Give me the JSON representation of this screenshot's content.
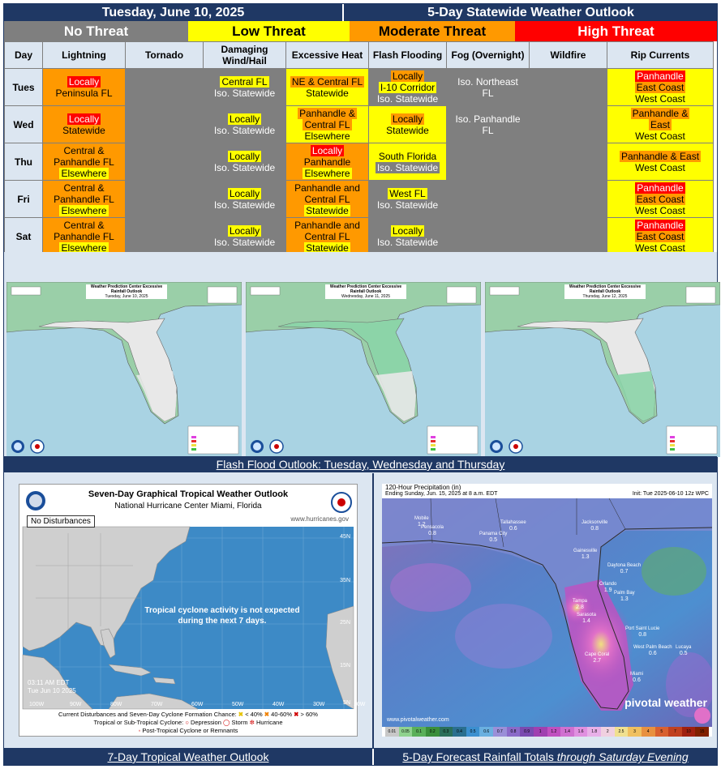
{
  "header": {
    "date": "Tuesday, June 10, 2025",
    "title": "5-Day Statewide Weather Outlook"
  },
  "legend": [
    {
      "label": "No Threat",
      "color": "#7f7f7f",
      "text_color": "#ffffff"
    },
    {
      "label": "Low Threat",
      "color": "#ffff00",
      "text_color": "#000000"
    },
    {
      "label": "Moderate Threat",
      "color": "#ff9900",
      "text_color": "#000000"
    },
    {
      "label": "High Threat",
      "color": "#ff0000",
      "text_color": "#ffffff"
    }
  ],
  "columns": [
    "Day",
    "Lightning",
    "Tornado",
    "Damaging Wind/Hail",
    "Excessive Heat",
    "Flash Flooding",
    "Fog (Overnight)",
    "Wildfire",
    "Rip Currents"
  ],
  "rows": [
    {
      "day": "Tues",
      "cells": [
        {
          "bg": "orange",
          "chips": [
            {
              "t": "Locally",
              "c": "red"
            },
            {
              "t": "Peninsula FL",
              "c": "none"
            }
          ]
        },
        {
          "bg": "gray",
          "chips": []
        },
        {
          "bg": "gray",
          "chips": [
            {
              "t": "Central FL",
              "c": "yellow"
            },
            {
              "t": "Iso. Statewide",
              "c": "none"
            }
          ]
        },
        {
          "bg": "yellow",
          "chips": [
            {
              "t": "NE & Central FL",
              "c": "orange"
            },
            {
              "t": "Statewide",
              "c": "none"
            }
          ]
        },
        {
          "bg": "gray",
          "chips": [
            {
              "t": "Locally",
              "c": "orange"
            },
            {
              "t": "I-10 Corridor",
              "c": "yellow"
            },
            {
              "t": "Iso. Statewide",
              "c": "none"
            }
          ]
        },
        {
          "bg": "gray",
          "chips": [
            {
              "t": "Iso. Northeast",
              "c": "none"
            },
            {
              "t": "FL",
              "c": "none"
            }
          ]
        },
        {
          "bg": "gray",
          "chips": []
        },
        {
          "bg": "yellow",
          "chips": [
            {
              "t": "Panhandle",
              "c": "red"
            },
            {
              "t": "East Coast",
              "c": "orange"
            },
            {
              "t": "West Coast",
              "c": "none"
            }
          ]
        }
      ]
    },
    {
      "day": "Wed",
      "cells": [
        {
          "bg": "orange",
          "chips": [
            {
              "t": "Locally",
              "c": "red"
            },
            {
              "t": "Statewide",
              "c": "none"
            }
          ]
        },
        {
          "bg": "gray",
          "chips": []
        },
        {
          "bg": "gray",
          "chips": [
            {
              "t": "Locally",
              "c": "yellow"
            },
            {
              "t": "Iso. Statewide",
              "c": "none"
            }
          ]
        },
        {
          "bg": "yellow",
          "chips": [
            {
              "t": "Panhandle &",
              "c": "orange"
            },
            {
              "t": "Central FL",
              "c": "orange"
            },
            {
              "t": "Elsewhere",
              "c": "none"
            }
          ]
        },
        {
          "bg": "yellow",
          "chips": [
            {
              "t": "Locally",
              "c": "orange"
            },
            {
              "t": "Statewide",
              "c": "none"
            }
          ]
        },
        {
          "bg": "gray",
          "chips": [
            {
              "t": "Iso. Panhandle",
              "c": "none"
            },
            {
              "t": "FL",
              "c": "none"
            }
          ]
        },
        {
          "bg": "gray",
          "chips": []
        },
        {
          "bg": "yellow",
          "chips": [
            {
              "t": "Panhandle &",
              "c": "orange"
            },
            {
              "t": "East",
              "c": "orange"
            },
            {
              "t": "West Coast",
              "c": "none"
            }
          ]
        }
      ]
    },
    {
      "day": "Thu",
      "cells": [
        {
          "bg": "orange",
          "chips": [
            {
              "t": "Central &",
              "c": "none"
            },
            {
              "t": "Panhandle FL",
              "c": "none"
            },
            {
              "t": "Elsewhere",
              "c": "yellow"
            }
          ]
        },
        {
          "bg": "gray",
          "chips": []
        },
        {
          "bg": "gray",
          "chips": [
            {
              "t": "Locally",
              "c": "yellow"
            },
            {
              "t": "Iso. Statewide",
              "c": "none"
            }
          ]
        },
        {
          "bg": "orange",
          "chips": [
            {
              "t": "Locally",
              "c": "red"
            },
            {
              "t": "Panhandle",
              "c": "none"
            },
            {
              "t": "Elsewhere",
              "c": "yellow"
            }
          ]
        },
        {
          "bg": "yellow",
          "chips": [
            {
              "t": "South Florida",
              "c": "none"
            },
            {
              "t": "Iso. Statewide",
              "c": "gray"
            }
          ]
        },
        {
          "bg": "gray",
          "chips": []
        },
        {
          "bg": "gray",
          "chips": []
        },
        {
          "bg": "yellow",
          "chips": [
            {
              "t": "Panhandle & East",
              "c": "orange"
            },
            {
              "t": "West Coast",
              "c": "none"
            }
          ]
        }
      ]
    },
    {
      "day": "Fri",
      "cells": [
        {
          "bg": "orange",
          "chips": [
            {
              "t": "Central &",
              "c": "none"
            },
            {
              "t": "Panhandle FL",
              "c": "none"
            },
            {
              "t": "Elsewhere",
              "c": "yellow"
            }
          ]
        },
        {
          "bg": "gray",
          "chips": []
        },
        {
          "bg": "gray",
          "chips": [
            {
              "t": "Locally",
              "c": "yellow"
            },
            {
              "t": "Iso. Statewide",
              "c": "none"
            }
          ]
        },
        {
          "bg": "orange",
          "chips": [
            {
              "t": "Panhandle and",
              "c": "none"
            },
            {
              "t": "Central FL",
              "c": "none"
            },
            {
              "t": "Statewide",
              "c": "yellow"
            }
          ]
        },
        {
          "bg": "gray",
          "chips": [
            {
              "t": "West FL",
              "c": "yellow"
            },
            {
              "t": "Iso. Statewide",
              "c": "none"
            }
          ]
        },
        {
          "bg": "gray",
          "chips": []
        },
        {
          "bg": "gray",
          "chips": []
        },
        {
          "bg": "yellow",
          "chips": [
            {
              "t": "Panhandle",
              "c": "red"
            },
            {
              "t": "East Coast",
              "c": "orange"
            },
            {
              "t": "West Coast",
              "c": "none"
            }
          ]
        }
      ]
    },
    {
      "day": "Sat",
      "cells": [
        {
          "bg": "orange",
          "chips": [
            {
              "t": "Central &",
              "c": "none"
            },
            {
              "t": "Panhandle FL",
              "c": "none"
            },
            {
              "t": "Elsewhere",
              "c": "yellow"
            }
          ]
        },
        {
          "bg": "gray",
          "chips": []
        },
        {
          "bg": "gray",
          "chips": [
            {
              "t": "Locally",
              "c": "yellow"
            },
            {
              "t": "Iso. Statewide",
              "c": "none"
            }
          ]
        },
        {
          "bg": "orange",
          "chips": [
            {
              "t": "Panhandle and",
              "c": "none"
            },
            {
              "t": "Central FL",
              "c": "none"
            },
            {
              "t": "Statewide",
              "c": "yellow"
            }
          ]
        },
        {
          "bg": "gray",
          "chips": [
            {
              "t": "Locally",
              "c": "yellow"
            },
            {
              "t": "Iso. Statewide",
              "c": "none"
            }
          ]
        },
        {
          "bg": "gray",
          "chips": []
        },
        {
          "bg": "gray",
          "chips": []
        },
        {
          "bg": "yellow",
          "chips": [
            {
              "t": "Panhandle",
              "c": "red"
            },
            {
              "t": "East Coast",
              "c": "orange"
            },
            {
              "t": "West Coast",
              "c": "none"
            }
          ]
        }
      ]
    }
  ],
  "flood_maps": [
    {
      "title": "Weather Prediction Center Excessive Rainfall Outlook",
      "date": "Tuesday, June 10, 2025"
    },
    {
      "title": "Weather Prediction Center Excessive Rainfall Outlook",
      "date": "Wednesday, June 11, 2025"
    },
    {
      "title": "Weather Prediction Center Excessive Rainfall Outlook",
      "date": "Thursday, June 12, 2025"
    }
  ],
  "flood_caption": "Flash Flood Outlook: Tuesday, Wednesday and Thursday",
  "tropical": {
    "title": "Seven-Day Graphical Tropical Weather Outlook",
    "subtitle": "National Hurricane Center  Miami, Florida",
    "url": "www.hurricanes.gov",
    "badge": "No Disturbances",
    "message_line1": "Tropical cyclone activity is not expected",
    "message_line2": "during the next 7 days.",
    "time1": "03:11 AM EDT",
    "time2": "Tue Jun 10 2025",
    "legend_line1": "Current Disturbances and Seven-Day Cyclone Formation Chance:",
    "legend_low": "< 40%",
    "legend_mid": "40-60%",
    "legend_high": "> 60%",
    "legend_line2_label": "Tropical or Sub-Tropical Cyclone:",
    "legend_dep": "Depression",
    "legend_storm": "Storm",
    "legend_hurr": "Hurricane",
    "legend_post": "Post-Tropical Cyclone or Remnants",
    "lat_labels": [
      "45N",
      "35N",
      "25N",
      "15N",
      "5N"
    ],
    "lon_labels": [
      "100W",
      "90W",
      "80W",
      "70W",
      "60W",
      "50W",
      "40W",
      "30W",
      "20W"
    ]
  },
  "tropical_caption": "7-Day Tropical Weather Outlook",
  "rain": {
    "title": "120-Hour Precipitation (in)",
    "subtitle": "Ending Sunday, Jun. 15, 2025 at 8 a.m. EDT",
    "init": "Init: Tue 2025-06-10 12z WPC",
    "brand": "pivotal weather",
    "brand_url": "www.pivotalweather.com",
    "cities": [
      {
        "name": "Mobile",
        "val": "1.2"
      },
      {
        "name": "Pensacola",
        "val": "0.8"
      },
      {
        "name": "Tallahassee",
        "val": "0.6"
      },
      {
        "name": "Jacksonville",
        "val": "0.8"
      },
      {
        "name": "Panama City",
        "val": "0.5"
      },
      {
        "name": "Gainesville",
        "val": "1.3"
      },
      {
        "name": "Daytona Beach",
        "val": "0.7"
      },
      {
        "name": "Orlando",
        "val": "1.9"
      },
      {
        "name": "Tampa",
        "val": "2.8"
      },
      {
        "name": "Palm Bay",
        "val": "1.3"
      },
      {
        "name": "Sarasota",
        "val": "1.4"
      },
      {
        "name": "Port Saint Lucie",
        "val": "0.8"
      },
      {
        "name": "West Palm Beach",
        "val": "0.6"
      },
      {
        "name": "Lucaya",
        "val": "0.5"
      },
      {
        "name": "Cape Coral",
        "val": "2.7"
      },
      {
        "name": "Miami",
        "val": "0.6"
      }
    ],
    "scale": [
      "0.01",
      "0.05",
      "0.1",
      "0.2",
      "0.3",
      "0.4",
      "0.5",
      "0.6",
      "0.7",
      "0.8",
      "0.9",
      "1",
      "1.2",
      "1.4",
      "1.6",
      "1.8",
      "2",
      "2.5",
      "3",
      "4",
      "5",
      "7",
      "10",
      "15"
    ]
  },
  "rain_caption_main": "5-Day Forecast Rainfall Totals ",
  "rain_caption_em": "through Saturday Evening"
}
